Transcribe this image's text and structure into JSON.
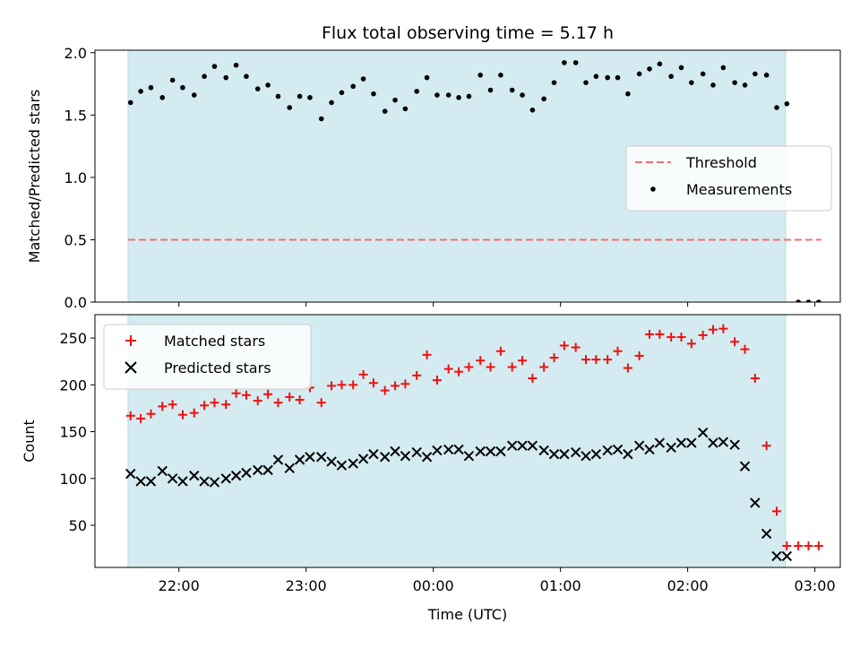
{
  "chart_data": {
    "title": "Flux total observing time = 5.17 h",
    "xlabel": "Time (UTC)",
    "x_tick_labels": [
      "22:00",
      "23:00",
      "00:00",
      "01:00",
      "02:00",
      "03:00"
    ],
    "x_tick_hours": [
      0,
      1,
      2,
      3,
      4,
      5
    ],
    "x_origin": "22:00 UTC",
    "x_range_hours": [
      -0.66,
      5.2
    ],
    "shaded_span_hours": [
      -0.4,
      4.77
    ],
    "shade_color": "#d4ebf1",
    "panels": [
      {
        "type": "scatter",
        "ylabel": "Matched/Predicted stars",
        "ylim": [
          0.0,
          2.02
        ],
        "y_ticks": [
          "0.0",
          "0.5",
          "1.0",
          "1.5",
          "2.0"
        ],
        "y_tick_values": [
          0.0,
          0.5,
          1.0,
          1.5,
          2.0
        ],
        "legend_position": "center-right",
        "threshold": {
          "name": "Threshold",
          "y": 0.5,
          "x": [
            -0.4,
            5.05
          ],
          "color": "#f07070"
        },
        "series": [
          {
            "name": "Measurements",
            "color": "#000000",
            "x": [
              -0.38,
              -0.3,
              -0.22,
              -0.13,
              -0.05,
              0.03,
              0.12,
              0.2,
              0.28,
              0.37,
              0.45,
              0.53,
              0.62,
              0.7,
              0.78,
              0.87,
              0.95,
              1.03,
              1.12,
              1.2,
              1.28,
              1.37,
              1.45,
              1.53,
              1.62,
              1.7,
              1.78,
              1.87,
              1.95,
              2.03,
              2.12,
              2.2,
              2.28,
              2.37,
              2.45,
              2.53,
              2.62,
              2.7,
              2.78,
              2.87,
              2.95,
              3.03,
              3.12,
              3.2,
              3.28,
              3.37,
              3.45,
              3.53,
              3.62,
              3.7,
              3.78,
              3.87,
              3.95,
              4.03,
              4.12,
              4.2,
              4.28,
              4.37,
              4.45,
              4.53,
              4.62,
              4.7,
              4.78,
              4.87,
              4.95,
              5.03
            ],
            "y": [
              1.6,
              1.69,
              1.72,
              1.64,
              1.78,
              1.72,
              1.66,
              1.81,
              1.89,
              1.8,
              1.9,
              1.81,
              1.71,
              1.74,
              1.65,
              1.56,
              1.65,
              1.64,
              1.47,
              1.6,
              1.68,
              1.73,
              1.79,
              1.67,
              1.53,
              1.62,
              1.55,
              1.69,
              1.8,
              1.66,
              1.66,
              1.64,
              1.65,
              1.82,
              1.7,
              1.82,
              1.7,
              1.66,
              1.54,
              1.63,
              1.76,
              1.92,
              1.92,
              1.76,
              1.81,
              1.8,
              1.8,
              1.67,
              1.83,
              1.87,
              1.91,
              1.81,
              1.88,
              1.76,
              1.83,
              1.74,
              1.88,
              1.76,
              1.74,
              1.83,
              1.82,
              1.56,
              1.59,
              0.0,
              0.0,
              0.0
            ]
          }
        ]
      },
      {
        "type": "scatter",
        "ylabel": "Count",
        "ylim": [
          5,
          275
        ],
        "y_ticks": [
          "50",
          "100",
          "150",
          "200",
          "250"
        ],
        "y_tick_values": [
          50,
          100,
          150,
          200,
          250
        ],
        "legend_position": "top-left",
        "series": [
          {
            "name": "Matched stars",
            "marker": "+",
            "color": "#ee1111",
            "x": [
              -0.38,
              -0.3,
              -0.22,
              -0.13,
              -0.05,
              0.03,
              0.12,
              0.2,
              0.28,
              0.37,
              0.45,
              0.53,
              0.62,
              0.7,
              0.78,
              0.87,
              0.95,
              1.03,
              1.12,
              1.2,
              1.28,
              1.37,
              1.45,
              1.53,
              1.62,
              1.7,
              1.78,
              1.87,
              1.95,
              2.03,
              2.12,
              2.2,
              2.28,
              2.37,
              2.45,
              2.53,
              2.62,
              2.7,
              2.78,
              2.87,
              2.95,
              3.03,
              3.12,
              3.2,
              3.28,
              3.37,
              3.45,
              3.53,
              3.62,
              3.7,
              3.78,
              3.87,
              3.95,
              4.03,
              4.12,
              4.2,
              4.28,
              4.37,
              4.45,
              4.53,
              4.62,
              4.7,
              4.78,
              4.87,
              4.95,
              5.03
            ],
            "y": [
              167,
              164,
              169,
              177,
              179,
              168,
              170,
              178,
              181,
              179,
              191,
              189,
              183,
              190,
              181,
              187,
              184,
              197,
              181,
              199,
              200,
              200,
              211,
              202,
              194,
              199,
              201,
              210,
              232,
              205,
              217,
              214,
              219,
              226,
              219,
              236,
              219,
              226,
              207,
              219,
              229,
              242,
              240,
              227,
              227,
              227,
              236,
              218,
              231,
              254,
              254,
              251,
              251,
              244,
              253,
              259,
              260,
              246,
              238,
              207,
              135,
              65,
              28,
              28,
              28,
              28
            ]
          },
          {
            "name": "Predicted stars",
            "marker": "x",
            "color": "#000000",
            "x": [
              -0.38,
              -0.3,
              -0.22,
              -0.13,
              -0.05,
              0.03,
              0.12,
              0.2,
              0.28,
              0.37,
              0.45,
              0.53,
              0.62,
              0.7,
              0.78,
              0.87,
              0.95,
              1.03,
              1.12,
              1.2,
              1.28,
              1.37,
              1.45,
              1.53,
              1.62,
              1.7,
              1.78,
              1.87,
              1.95,
              2.03,
              2.12,
              2.2,
              2.28,
              2.37,
              2.45,
              2.53,
              2.62,
              2.7,
              2.78,
              2.87,
              2.95,
              3.03,
              3.12,
              3.2,
              3.28,
              3.37,
              3.45,
              3.53,
              3.62,
              3.7,
              3.78,
              3.87,
              3.95,
              4.03,
              4.12,
              4.2,
              4.28,
              4.37,
              4.45,
              4.53,
              4.62,
              4.7,
              4.78
            ],
            "y": [
              105,
              97,
              97,
              108,
              100,
              97,
              103,
              97,
              96,
              100,
              103,
              106,
              109,
              109,
              120,
              111,
              120,
              123,
              123,
              118,
              114,
              116,
              121,
              126,
              123,
              129,
              124,
              128,
              123,
              130,
              131,
              131,
              124,
              129,
              129,
              129,
              135,
              135,
              135,
              130,
              126,
              126,
              128,
              124,
              126,
              130,
              131,
              126,
              135,
              131,
              138,
              133,
              138,
              138,
              149,
              138,
              139,
              136,
              113,
              74,
              41,
              17,
              17
            ]
          }
        ]
      }
    ]
  }
}
